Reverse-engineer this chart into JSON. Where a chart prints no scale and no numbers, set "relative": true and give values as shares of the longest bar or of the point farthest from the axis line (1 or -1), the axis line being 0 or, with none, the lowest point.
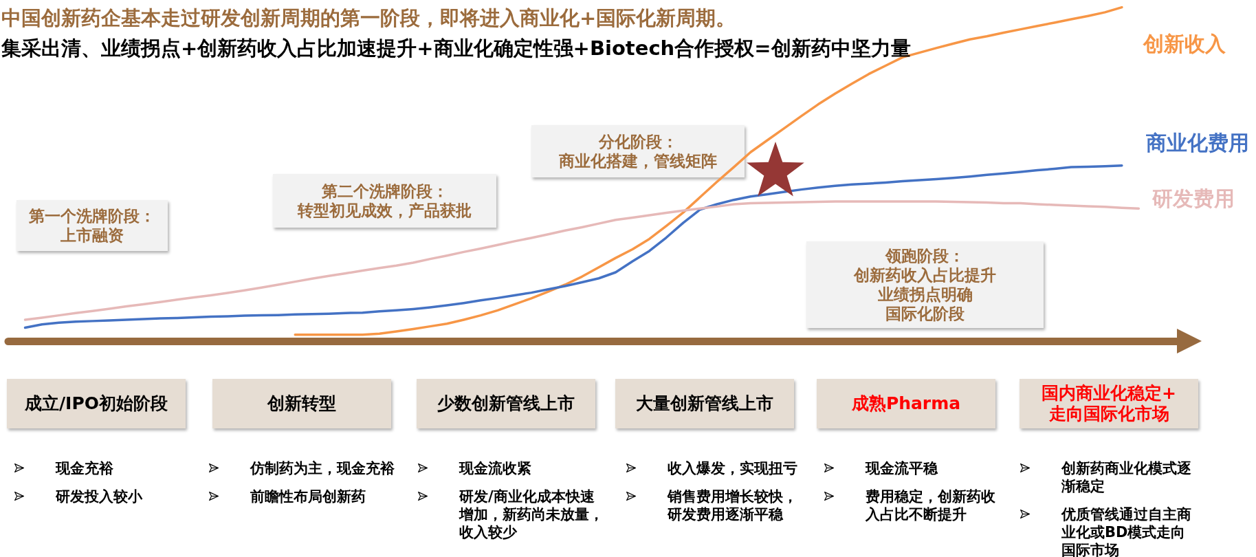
{
  "chart_data": {
    "type": "line",
    "title": "中国创新药企基本走过研发创新周期的第一阶段，即将进入商业化+国际化新周期。",
    "subtitle": "集采出清、业绩拐点+创新药收入占比加速提升+商业化确定性强+Biotech合作授权=创新药中坚力量",
    "relative": true,
    "categories": [
      null,
      null,
      null,
      null,
      null,
      null,
      null,
      null,
      null,
      null,
      null,
      null,
      null,
      null,
      null,
      null,
      null,
      null,
      null,
      null,
      null,
      null,
      null,
      null,
      null,
      null,
      null,
      null,
      null,
      null,
      null,
      null,
      null,
      null,
      null,
      null,
      null,
      null,
      null,
      null,
      null,
      null,
      null,
      null,
      null,
      null,
      null,
      null,
      null,
      null,
      null,
      null,
      null,
      null,
      null,
      null,
      null,
      null,
      null,
      null,
      null,
      null,
      null,
      null,
      null,
      null,
      null,
      null,
      null,
      null,
      null
    ],
    "series": [
      {
        "name": "创新收入",
        "color": "#F79646",
        "values": [
          null,
          null,
          null,
          null,
          null,
          null,
          null,
          null,
          null,
          null,
          null,
          null,
          null,
          null,
          null,
          null,
          null,
          0.019,
          0.019,
          0.019,
          0.019,
          0.019,
          0.022,
          0.029,
          0.036,
          0.044,
          0.052,
          0.064,
          0.077,
          0.092,
          0.11,
          0.128,
          0.148,
          0.169,
          0.193,
          0.221,
          0.249,
          0.275,
          0.306,
          0.345,
          0.385,
          0.431,
          0.477,
          0.521,
          0.566,
          0.602,
          0.638,
          0.674,
          0.709,
          0.741,
          0.771,
          0.8,
          0.825,
          0.85,
          0.864,
          0.878,
          0.891,
          0.904,
          0.913,
          0.924,
          0.934,
          0.944,
          0.954,
          0.964,
          0.974,
          0.985,
          1,
          null,
          null,
          null,
          null
        ]
      },
      {
        "name": "商业化费用",
        "color": "#4472C4",
        "values": [
          null,
          0.04,
          0.05,
          0.055,
          0.058,
          0.06,
          0.062,
          0.064,
          0.066,
          0.068,
          0.069,
          0.071,
          0.073,
          0.074,
          0.076,
          0.077,
          0.078,
          0.08,
          0.081,
          0.082,
          0.084,
          0.085,
          0.089,
          0.092,
          0.096,
          0.101,
          0.107,
          0.114,
          0.122,
          0.129,
          0.137,
          0.145,
          0.155,
          0.165,
          0.176,
          0.188,
          0.206,
          0.239,
          0.27,
          0.31,
          0.354,
          0.394,
          0.41,
          0.423,
          0.433,
          0.44,
          0.447,
          0.454,
          0.46,
          0.465,
          0.469,
          0.472,
          0.475,
          0.479,
          0.482,
          0.485,
          0.489,
          0.493,
          0.498,
          0.502,
          0.507,
          0.512,
          0.516,
          0.521,
          0.522,
          0.524,
          0.526,
          null,
          null,
          null,
          null
        ]
      },
      {
        "name": "研发费用",
        "color": "#E6B9B8",
        "values": [
          null,
          0.064,
          0.07,
          0.077,
          0.084,
          0.09,
          0.097,
          0.104,
          0.11,
          0.117,
          0.124,
          0.131,
          0.137,
          0.144,
          0.152,
          0.16,
          0.169,
          0.178,
          0.187,
          0.195,
          0.203,
          0.211,
          0.219,
          0.226,
          0.235,
          0.246,
          0.256,
          0.267,
          0.277,
          0.288,
          0.299,
          0.309,
          0.32,
          0.331,
          0.341,
          0.352,
          0.363,
          0.37,
          0.377,
          0.384,
          0.391,
          0.397,
          0.403,
          0.41,
          0.413,
          0.414,
          0.415,
          0.416,
          0.417,
          0.418,
          0.418,
          0.418,
          0.418,
          0.418,
          0.418,
          0.418,
          0.417,
          0.416,
          0.415,
          0.413,
          0.413,
          0.41,
          0.408,
          0.406,
          0.404,
          0.402,
          0.399,
          0.397,
          null,
          null,
          null
        ]
      }
    ],
    "annotations": [
      "第一个洗牌阶段：",
      "上市融资",
      "第二个洗牌阶段：",
      "转型初见成效，产品获批",
      "分化阶段：",
      "商业化搭建，管线矩阵",
      "领跑阶段：",
      "创新药收入占比提升",
      "业绩拐点明确",
      "国际化阶段",
      "成立/IPO初始阶段",
      "创新转型",
      "少数创新管线上市",
      "大量创新管线上市",
      "成熟Pharma",
      "国内商业化稳定+走向国际化市场",
      "现金充裕",
      "研发投入较小",
      "仿制药为主，现金充裕",
      "前瞻性布局创新药",
      "现金流收紧",
      "研发/商业化成本快速增加，新药尚未放量，收入较少",
      "收入爆发，实现扭亏",
      "销售费用增长较快，研发费用逐渐平稳",
      "现金流平稳",
      "费用稳定，创新药收入占比不断提升",
      "创新药商业化模式逐渐稳定",
      "优质管线通过自主商业化或BD模式走向国际市场"
    ]
  }
}
